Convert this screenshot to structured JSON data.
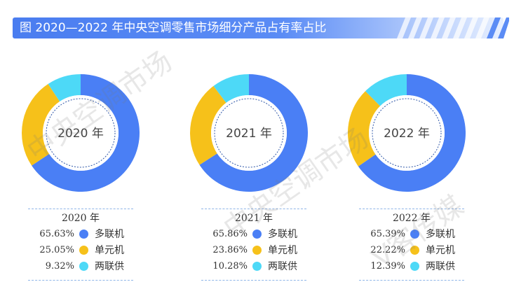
{
  "title": "图   2020—2022 年中央空调零售市场细分产品占有率占比",
  "watermark": "中央空调市场",
  "watermark2": "V客传媒",
  "colors": {
    "多联机": "#4a7ff5",
    "单元机": "#f6c11a",
    "两联供": "#4dd9f7"
  },
  "chart_data": [
    {
      "type": "pie",
      "center_label": "2020 年",
      "legend_title": "2020 年",
      "categories": [
        "多联机",
        "单元机",
        "两联供"
      ],
      "values": [
        65.63,
        25.05,
        9.32
      ],
      "value_labels": [
        "65.63%",
        "25.05%",
        "9.32%"
      ]
    },
    {
      "type": "pie",
      "center_label": "2021 年",
      "legend_title": "2021 年",
      "categories": [
        "多联机",
        "单元机",
        "两联供"
      ],
      "values": [
        65.86,
        23.86,
        10.28
      ],
      "value_labels": [
        "65.86%",
        "23.86%",
        "10.28%"
      ]
    },
    {
      "type": "pie",
      "center_label": "2022 年",
      "legend_title": "2022 年",
      "categories": [
        "多联机",
        "单元机",
        "两联供"
      ],
      "values": [
        65.39,
        22.22,
        12.39
      ],
      "value_labels": [
        "65.39%",
        "22.22%",
        "12.39%"
      ]
    }
  ]
}
